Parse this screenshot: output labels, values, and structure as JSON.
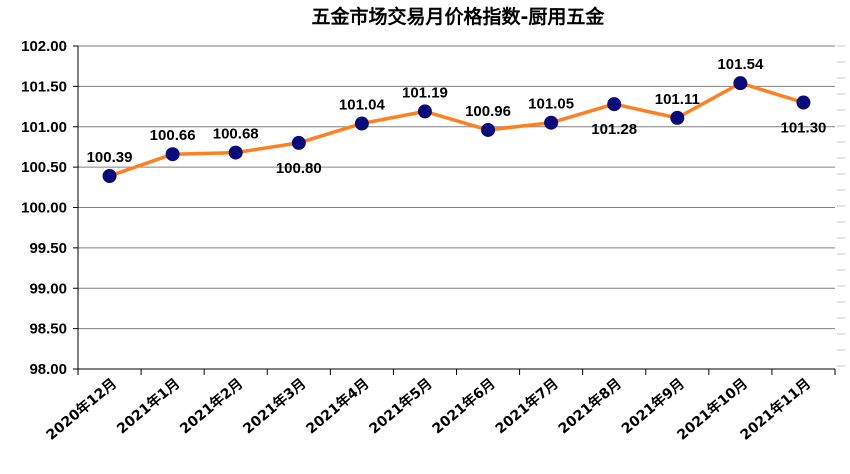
{
  "chart_data": {
    "type": "line",
    "title": "五金市场交易月价格指数-厨用五金",
    "categories": [
      "2020年12月",
      "2021年1月",
      "2021年2月",
      "2021年3月",
      "2021年4月",
      "2021年5月",
      "2021年6月",
      "2021年7月",
      "2021年8月",
      "2021年9月",
      "2021年10月",
      "2021年11月"
    ],
    "series": [
      {
        "values": [
          100.39,
          100.66,
          100.68,
          100.8,
          101.04,
          101.19,
          100.96,
          101.05,
          101.28,
          101.11,
          101.54,
          101.3
        ],
        "labels": [
          "100.39",
          "100.66",
          "100.68",
          "100.80",
          "101.04",
          "101.19",
          "100.96",
          "101.05",
          "101.28",
          "101.11",
          "101.54",
          "101.30"
        ]
      }
    ],
    "y_ticks": [
      "98.00",
      "98.50",
      "99.00",
      "99.50",
      "100.00",
      "100.50",
      "101.00",
      "101.50",
      "102.00"
    ],
    "ylim": [
      98.0,
      102.0
    ],
    "xlabel": "",
    "ylabel": "",
    "grid": true,
    "legend": "none",
    "colors": {
      "line": "#FF8020",
      "marker": "#0A0A78",
      "grid": "#808080",
      "axis": "#000000"
    }
  }
}
